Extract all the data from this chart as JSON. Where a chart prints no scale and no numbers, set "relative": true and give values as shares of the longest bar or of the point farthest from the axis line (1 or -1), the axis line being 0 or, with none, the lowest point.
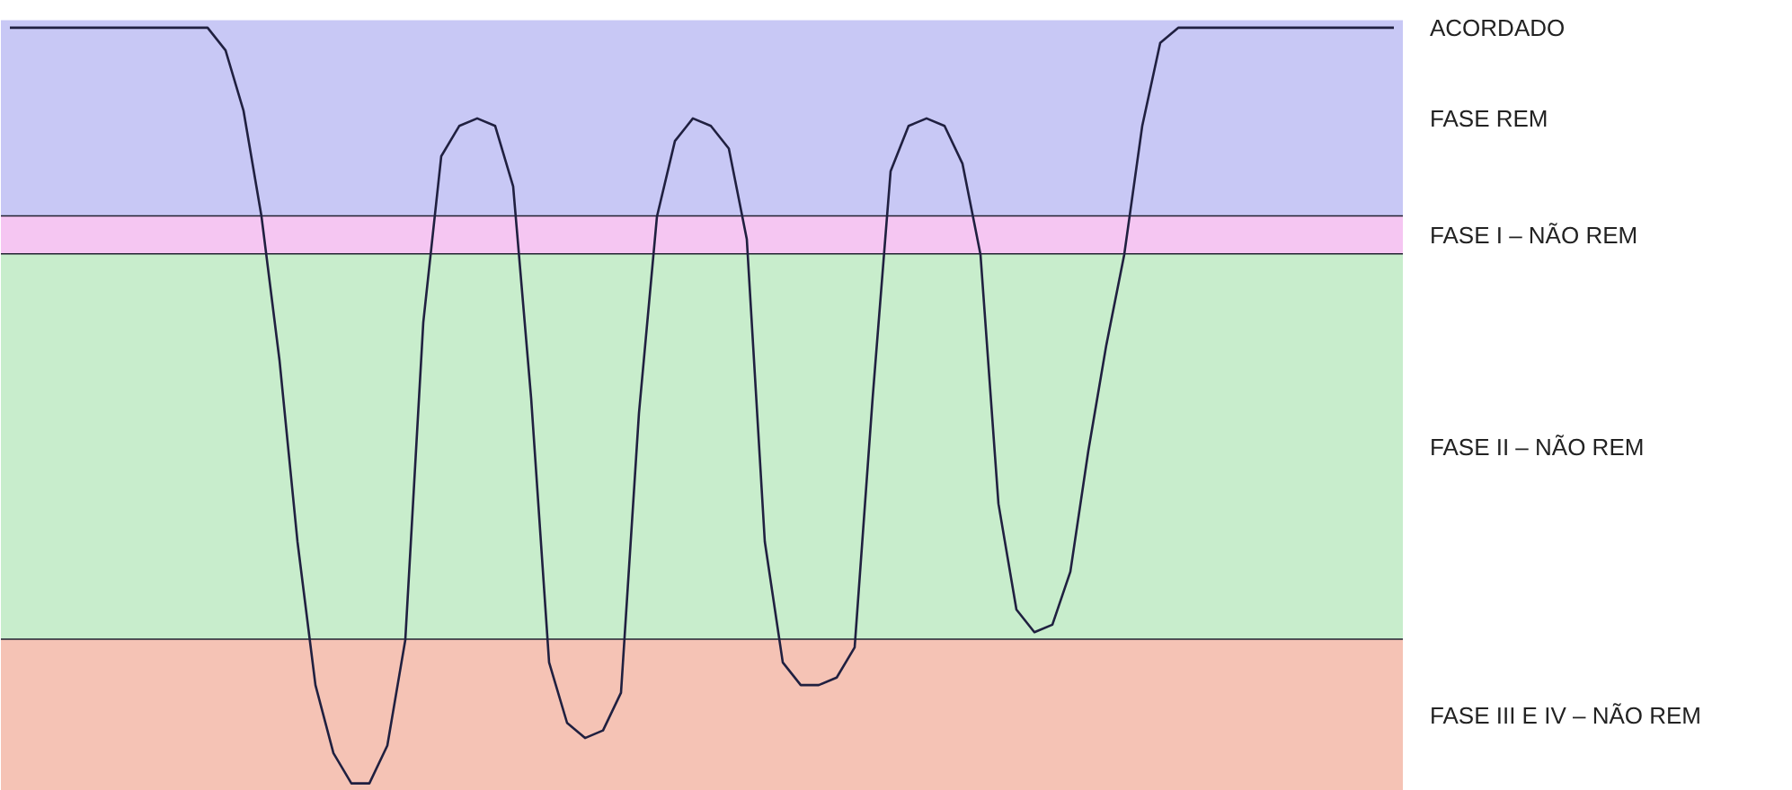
{
  "chart_data": {
    "type": "line",
    "relative": true,
    "categories": [
      null,
      null,
      null,
      null,
      null,
      null,
      null,
      null,
      null,
      null,
      null,
      null,
      null,
      null,
      null,
      null,
      null,
      null,
      null,
      null,
      null,
      null,
      null,
      null,
      null,
      null,
      null,
      null,
      null,
      null,
      null,
      null,
      null,
      null,
      null,
      null,
      null,
      null,
      null,
      null,
      null,
      null,
      null,
      null,
      null,
      null,
      null,
      null,
      null,
      null,
      null,
      null,
      null,
      null,
      null,
      null,
      null,
      null,
      null,
      null,
      null,
      null,
      null,
      null,
      null,
      null,
      null,
      null,
      null,
      null,
      null,
      null,
      null,
      null,
      null,
      null,
      null,
      null
    ],
    "series": [
      {
        "color": "#202040",
        "values": [
          1.0,
          1.0,
          1.0,
          1.0,
          1.0,
          1.0,
          1.0,
          1.0,
          1.0,
          1.0,
          1.0,
          1.0,
          0.97,
          0.89,
          0.75,
          0.56,
          0.32,
          0.13,
          0.04,
          0.0,
          0.0,
          0.05,
          0.19,
          0.61,
          0.83,
          0.87,
          0.88,
          0.87,
          0.79,
          0.51,
          0.16,
          0.08,
          0.06,
          0.07,
          0.12,
          0.49,
          0.75,
          0.85,
          0.88,
          0.87,
          0.84,
          0.72,
          0.32,
          0.16,
          0.13,
          0.13,
          0.14,
          0.18,
          0.51,
          0.81,
          0.87,
          0.88,
          0.87,
          0.82,
          0.7,
          0.37,
          0.23,
          0.2,
          0.21,
          0.28,
          0.44,
          0.58,
          0.7,
          0.87,
          0.98,
          1.0,
          1.0,
          1.0,
          1.0,
          1.0,
          1.0,
          1.0,
          1.0,
          1.0,
          1.0,
          1.0,
          1.0,
          1.0
        ]
      }
    ],
    "bands": [
      {
        "axis": "y",
        "from": 0.75,
        "to": 1.01,
        "label": "FASE REM",
        "color": "#c8c8f5"
      },
      {
        "axis": "y",
        "from": 0.7,
        "to": 0.75,
        "label": "FASE I – NÃO REM",
        "color": "#f5c6f2"
      },
      {
        "axis": "y",
        "from": 0.19,
        "to": 0.7,
        "label": "FASE II – NÃO REM",
        "color": "#c8edcc"
      },
      {
        "axis": "y",
        "from": -0.01,
        "to": 0.19,
        "label": "FASE III E IV – NÃO REM",
        "color": "#f5c3b5"
      }
    ],
    "annotations": [
      "ACORDADO"
    ],
    "line_style": "solid"
  }
}
